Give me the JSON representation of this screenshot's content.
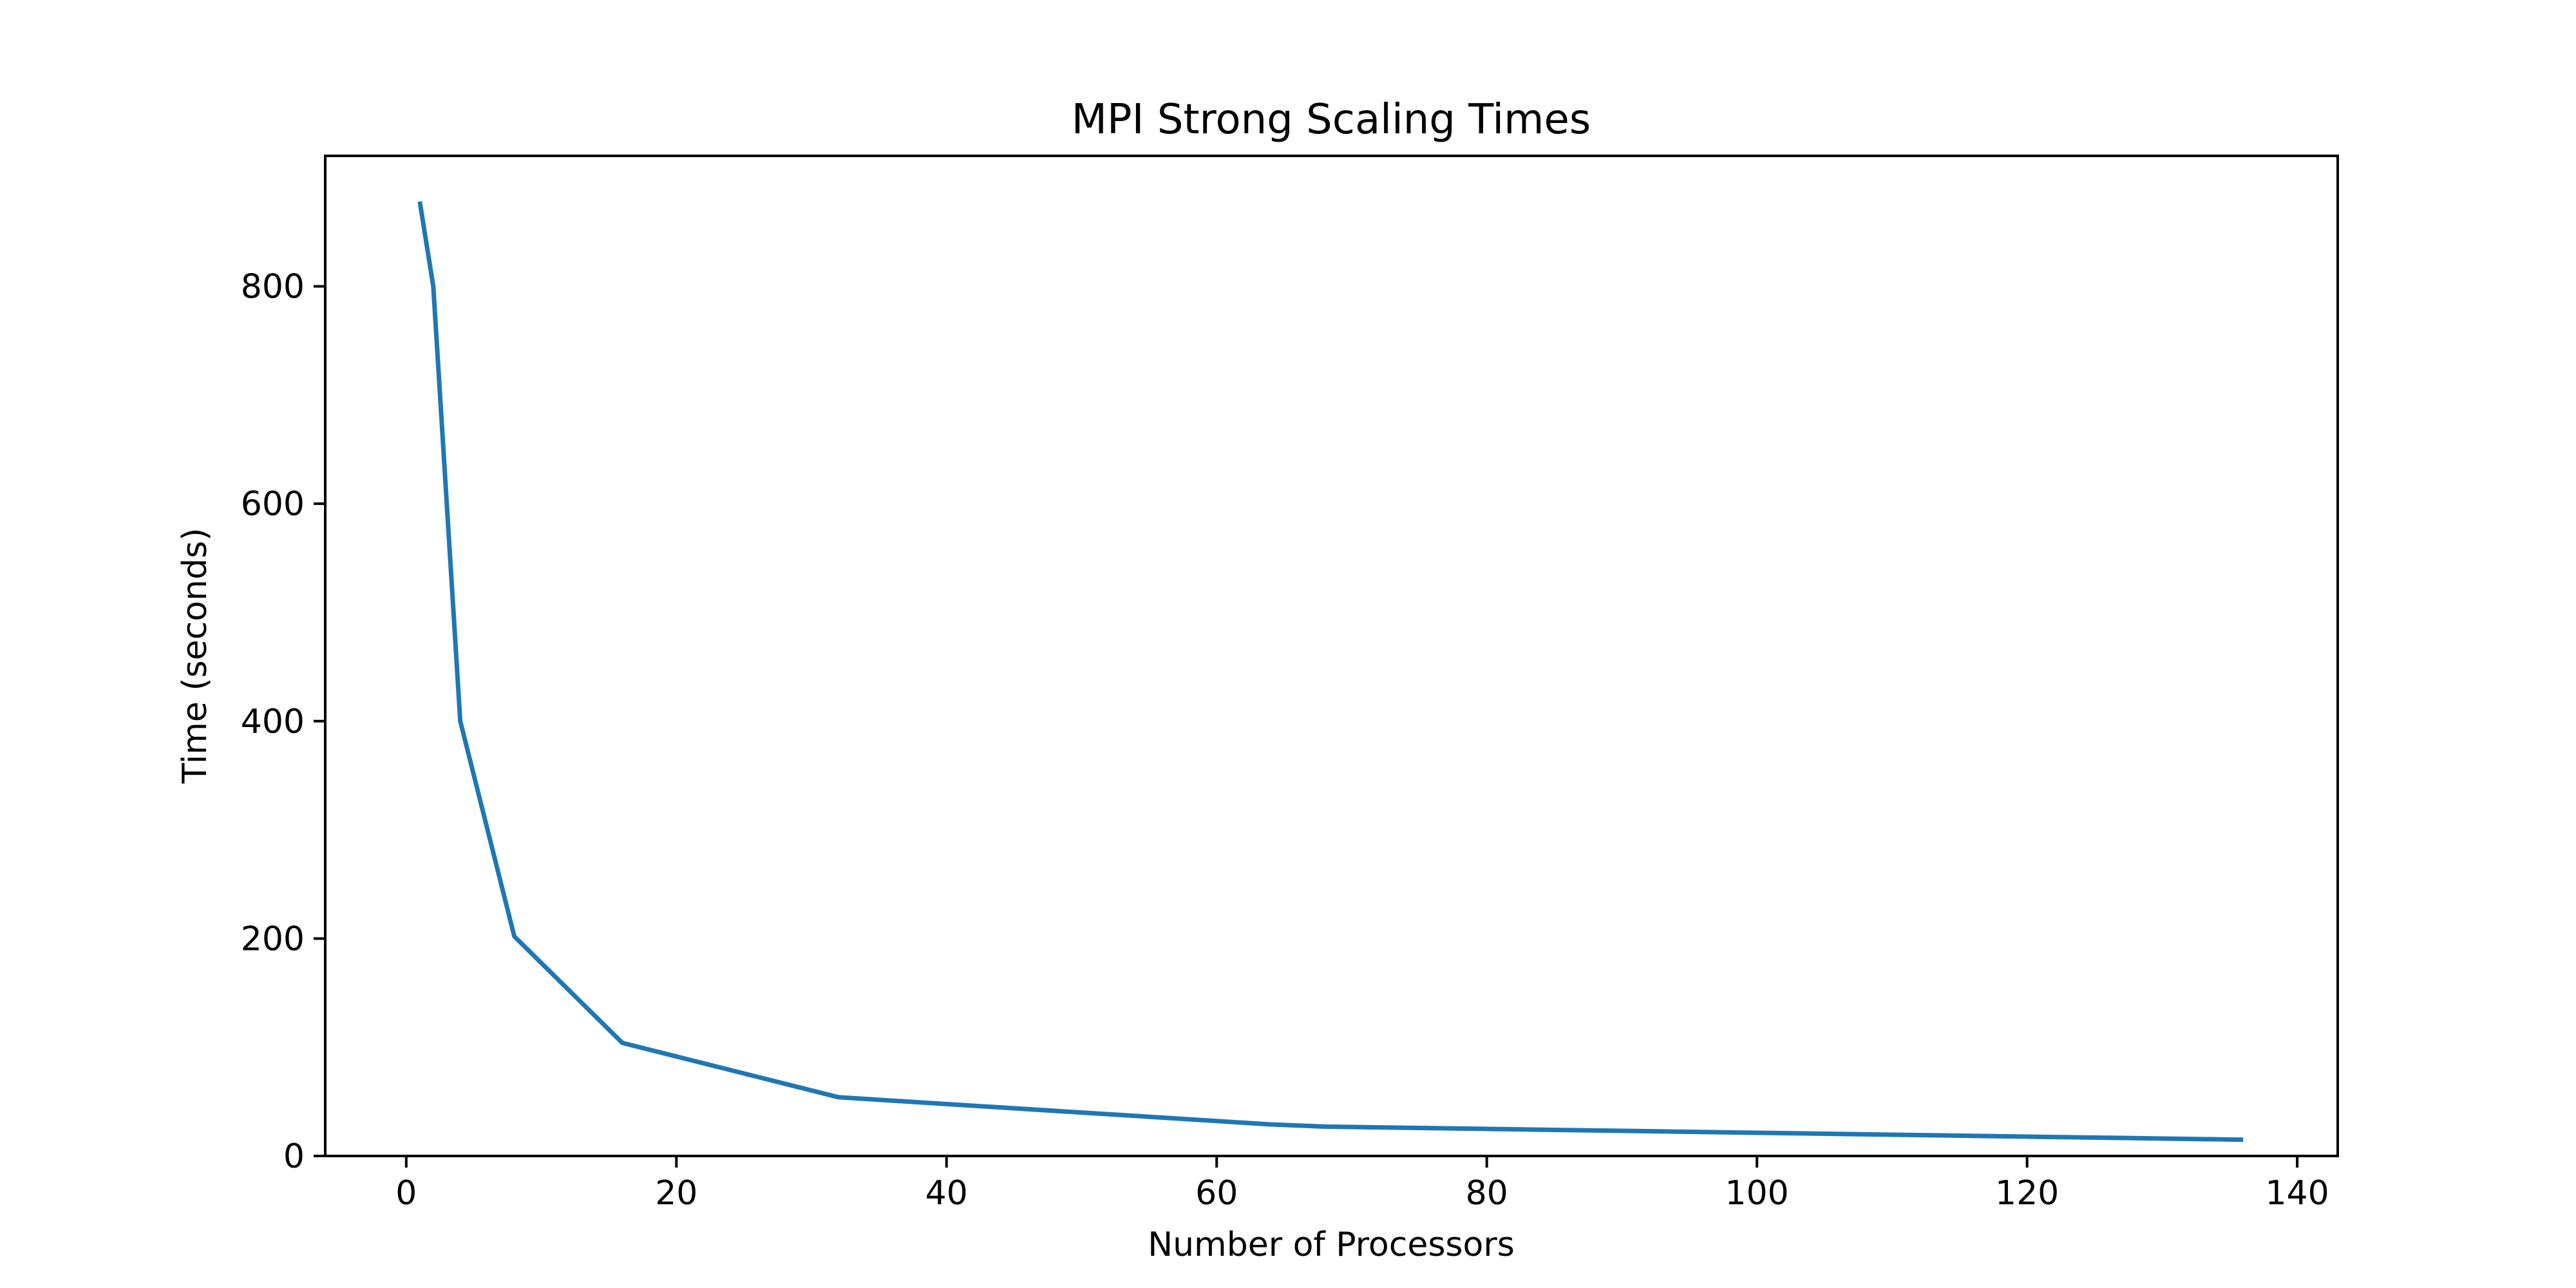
{
  "chart_data": {
    "type": "line",
    "title": "MPI Strong Scaling Times",
    "xlabel": "Number of Processors",
    "ylabel": "Time (seconds)",
    "xlim": [
      -6,
      143
    ],
    "ylim": [
      0,
      920
    ],
    "xticks": [
      0,
      20,
      40,
      60,
      80,
      100,
      120,
      140
    ],
    "yticks": [
      0,
      200,
      400,
      600,
      800
    ],
    "grid": false,
    "legend": "none",
    "series": [
      {
        "color": "#1f77b4",
        "x": [
          1,
          2,
          4,
          8,
          16,
          32,
          64,
          68,
          136
        ],
        "y": [
          878,
          800,
          400,
          202,
          104,
          54,
          29,
          27,
          15
        ]
      }
    ]
  }
}
